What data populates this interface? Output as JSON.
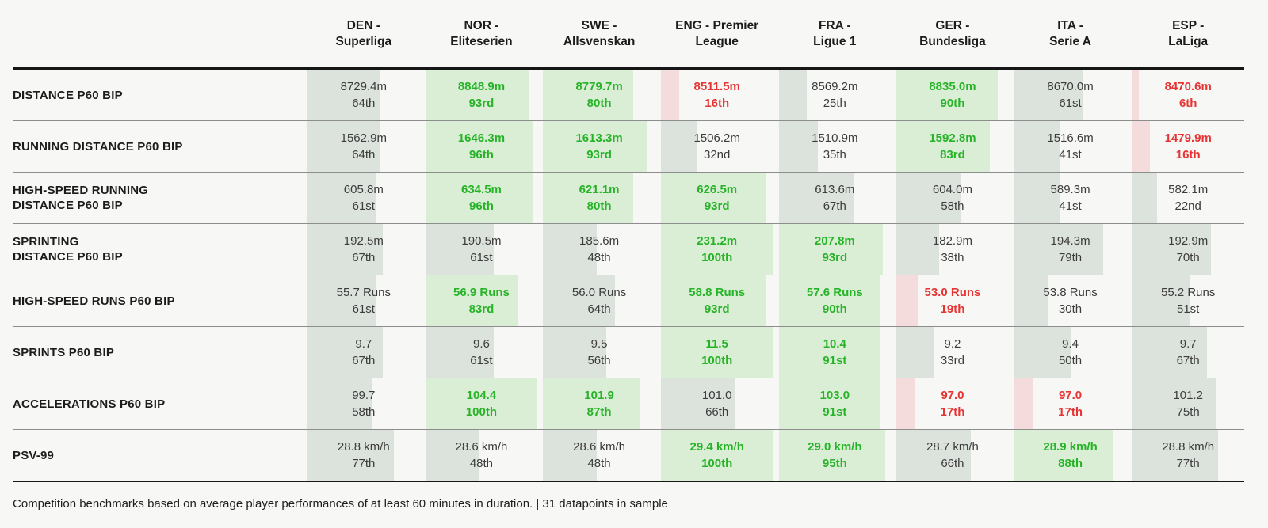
{
  "chart_data": {
    "type": "table",
    "columns": [
      {
        "line1": "DEN -",
        "line2": "Superliga"
      },
      {
        "line1": "NOR -",
        "line2": "Eliteserien"
      },
      {
        "line1": "SWE -",
        "line2": "Allsvenskan"
      },
      {
        "line1": "ENG - Premier",
        "line2": "League"
      },
      {
        "line1": "FRA -",
        "line2": "Ligue 1"
      },
      {
        "line1": "GER -",
        "line2": "Bundesliga"
      },
      {
        "line1": "ITA -",
        "line2": "Serie A"
      },
      {
        "line1": "ESP -",
        "line2": "LaLiga"
      }
    ],
    "metrics": [
      {
        "label_lines": [
          "DISTANCE P60 BIP"
        ],
        "cells": [
          {
            "value": "8729.4m",
            "percentile_label": "64th",
            "percentile": 64,
            "rating": "mid"
          },
          {
            "value": "8848.9m",
            "percentile_label": "93rd",
            "percentile": 93,
            "rating": "high"
          },
          {
            "value": "8779.7m",
            "percentile_label": "80th",
            "percentile": 80,
            "rating": "high"
          },
          {
            "value": "8511.5m",
            "percentile_label": "16th",
            "percentile": 16,
            "rating": "low"
          },
          {
            "value": "8569.2m",
            "percentile_label": "25th",
            "percentile": 25,
            "rating": "mid"
          },
          {
            "value": "8835.0m",
            "percentile_label": "90th",
            "percentile": 90,
            "rating": "high"
          },
          {
            "value": "8670.0m",
            "percentile_label": "61st",
            "percentile": 61,
            "rating": "mid"
          },
          {
            "value": "8470.6m",
            "percentile_label": "6th",
            "percentile": 6,
            "rating": "low"
          }
        ]
      },
      {
        "label_lines": [
          "RUNNING DISTANCE P60 BIP"
        ],
        "cells": [
          {
            "value": "1562.9m",
            "percentile_label": "64th",
            "percentile": 64,
            "rating": "mid"
          },
          {
            "value": "1646.3m",
            "percentile_label": "96th",
            "percentile": 96,
            "rating": "high"
          },
          {
            "value": "1613.3m",
            "percentile_label": "93rd",
            "percentile": 93,
            "rating": "high"
          },
          {
            "value": "1506.2m",
            "percentile_label": "32nd",
            "percentile": 32,
            "rating": "mid"
          },
          {
            "value": "1510.9m",
            "percentile_label": "35th",
            "percentile": 35,
            "rating": "mid"
          },
          {
            "value": "1592.8m",
            "percentile_label": "83rd",
            "percentile": 83,
            "rating": "high"
          },
          {
            "value": "1516.6m",
            "percentile_label": "41st",
            "percentile": 41,
            "rating": "mid"
          },
          {
            "value": "1479.9m",
            "percentile_label": "16th",
            "percentile": 16,
            "rating": "low"
          }
        ]
      },
      {
        "label_lines": [
          "HIGH-SPEED RUNNING",
          "DISTANCE P60 BIP"
        ],
        "cells": [
          {
            "value": "605.8m",
            "percentile_label": "61st",
            "percentile": 61,
            "rating": "mid"
          },
          {
            "value": "634.5m",
            "percentile_label": "96th",
            "percentile": 96,
            "rating": "high"
          },
          {
            "value": "621.1m",
            "percentile_label": "80th",
            "percentile": 80,
            "rating": "high"
          },
          {
            "value": "626.5m",
            "percentile_label": "93rd",
            "percentile": 93,
            "rating": "high"
          },
          {
            "value": "613.6m",
            "percentile_label": "67th",
            "percentile": 67,
            "rating": "mid"
          },
          {
            "value": "604.0m",
            "percentile_label": "58th",
            "percentile": 58,
            "rating": "mid"
          },
          {
            "value": "589.3m",
            "percentile_label": "41st",
            "percentile": 41,
            "rating": "mid"
          },
          {
            "value": "582.1m",
            "percentile_label": "22nd",
            "percentile": 22,
            "rating": "mid"
          }
        ]
      },
      {
        "label_lines": [
          "SPRINTING",
          "DISTANCE P60 BIP"
        ],
        "cells": [
          {
            "value": "192.5m",
            "percentile_label": "67th",
            "percentile": 67,
            "rating": "mid"
          },
          {
            "value": "190.5m",
            "percentile_label": "61st",
            "percentile": 61,
            "rating": "mid"
          },
          {
            "value": "185.6m",
            "percentile_label": "48th",
            "percentile": 48,
            "rating": "mid"
          },
          {
            "value": "231.2m",
            "percentile_label": "100th",
            "percentile": 100,
            "rating": "high"
          },
          {
            "value": "207.8m",
            "percentile_label": "93rd",
            "percentile": 93,
            "rating": "high"
          },
          {
            "value": "182.9m",
            "percentile_label": "38th",
            "percentile": 38,
            "rating": "mid"
          },
          {
            "value": "194.3m",
            "percentile_label": "79th",
            "percentile": 79,
            "rating": "mid"
          },
          {
            "value": "192.9m",
            "percentile_label": "70th",
            "percentile": 70,
            "rating": "mid"
          }
        ]
      },
      {
        "label_lines": [
          "HIGH-SPEED RUNS P60 BIP"
        ],
        "cells": [
          {
            "value": "55.7 Runs",
            "percentile_label": "61st",
            "percentile": 61,
            "rating": "mid"
          },
          {
            "value": "56.9 Runs",
            "percentile_label": "83rd",
            "percentile": 83,
            "rating": "high"
          },
          {
            "value": "56.0 Runs",
            "percentile_label": "64th",
            "percentile": 64,
            "rating": "mid"
          },
          {
            "value": "58.8 Runs",
            "percentile_label": "93rd",
            "percentile": 93,
            "rating": "high"
          },
          {
            "value": "57.6 Runs",
            "percentile_label": "90th",
            "percentile": 90,
            "rating": "high"
          },
          {
            "value": "53.0 Runs",
            "percentile_label": "19th",
            "percentile": 19,
            "rating": "low"
          },
          {
            "value": "53.8 Runs",
            "percentile_label": "30th",
            "percentile": 30,
            "rating": "mid"
          },
          {
            "value": "55.2 Runs",
            "percentile_label": "51st",
            "percentile": 51,
            "rating": "mid"
          }
        ]
      },
      {
        "label_lines": [
          "SPRINTS P60 BIP"
        ],
        "cells": [
          {
            "value": "9.7",
            "percentile_label": "67th",
            "percentile": 67,
            "rating": "mid"
          },
          {
            "value": "9.6",
            "percentile_label": "61st",
            "percentile": 61,
            "rating": "mid"
          },
          {
            "value": "9.5",
            "percentile_label": "56th",
            "percentile": 56,
            "rating": "mid"
          },
          {
            "value": "11.5",
            "percentile_label": "100th",
            "percentile": 100,
            "rating": "high"
          },
          {
            "value": "10.4",
            "percentile_label": "91st",
            "percentile": 91,
            "rating": "high"
          },
          {
            "value": "9.2",
            "percentile_label": "33rd",
            "percentile": 33,
            "rating": "mid"
          },
          {
            "value": "9.4",
            "percentile_label": "50th",
            "percentile": 50,
            "rating": "mid"
          },
          {
            "value": "9.7",
            "percentile_label": "67th",
            "percentile": 67,
            "rating": "mid"
          }
        ]
      },
      {
        "label_lines": [
          "ACCELERATIONS P60 BIP"
        ],
        "cells": [
          {
            "value": "99.7",
            "percentile_label": "58th",
            "percentile": 58,
            "rating": "mid"
          },
          {
            "value": "104.4",
            "percentile_label": "100th",
            "percentile": 100,
            "rating": "high"
          },
          {
            "value": "101.9",
            "percentile_label": "87th",
            "percentile": 87,
            "rating": "high"
          },
          {
            "value": "101.0",
            "percentile_label": "66th",
            "percentile": 66,
            "rating": "mid"
          },
          {
            "value": "103.0",
            "percentile_label": "91st",
            "percentile": 91,
            "rating": "high"
          },
          {
            "value": "97.0",
            "percentile_label": "17th",
            "percentile": 17,
            "rating": "low"
          },
          {
            "value": "97.0",
            "percentile_label": "17th",
            "percentile": 17,
            "rating": "low"
          },
          {
            "value": "101.2",
            "percentile_label": "75th",
            "percentile": 75,
            "rating": "mid"
          }
        ]
      },
      {
        "label_lines": [
          "PSV-99"
        ],
        "cells": [
          {
            "value": "28.8 km/h",
            "percentile_label": "77th",
            "percentile": 77,
            "rating": "mid"
          },
          {
            "value": "28.6 km/h",
            "percentile_label": "48th",
            "percentile": 48,
            "rating": "mid"
          },
          {
            "value": "28.6 km/h",
            "percentile_label": "48th",
            "percentile": 48,
            "rating": "mid"
          },
          {
            "value": "29.4 km/h",
            "percentile_label": "100th",
            "percentile": 100,
            "rating": "high"
          },
          {
            "value": "29.0 km/h",
            "percentile_label": "95th",
            "percentile": 95,
            "rating": "high"
          },
          {
            "value": "28.7 km/h",
            "percentile_label": "66th",
            "percentile": 66,
            "rating": "mid"
          },
          {
            "value": "28.9 km/h",
            "percentile_label": "88th",
            "percentile": 88,
            "rating": "high"
          },
          {
            "value": "28.8 km/h",
            "percentile_label": "77th",
            "percentile": 77,
            "rating": "mid"
          }
        ]
      }
    ],
    "legend_rules": {
      "high_rating_min_percentile": 80,
      "low_rating_max_percentile": 20
    }
  },
  "colors": {
    "background": "#f7f8f5",
    "bar_high": "#d9eed5",
    "bar_mid": "#dce2dc",
    "bar_low": "#f5dcdc",
    "text_high": "#27b327",
    "text_low": "#e63434",
    "text_mid": "#3c3c3c",
    "divider_thick": "#161616",
    "divider_thin": "#8d8d8d"
  },
  "footer": {
    "note": "Competition benchmarks based on average player performances of at least 60 minutes in duration. | 31 datapoints in sample"
  }
}
